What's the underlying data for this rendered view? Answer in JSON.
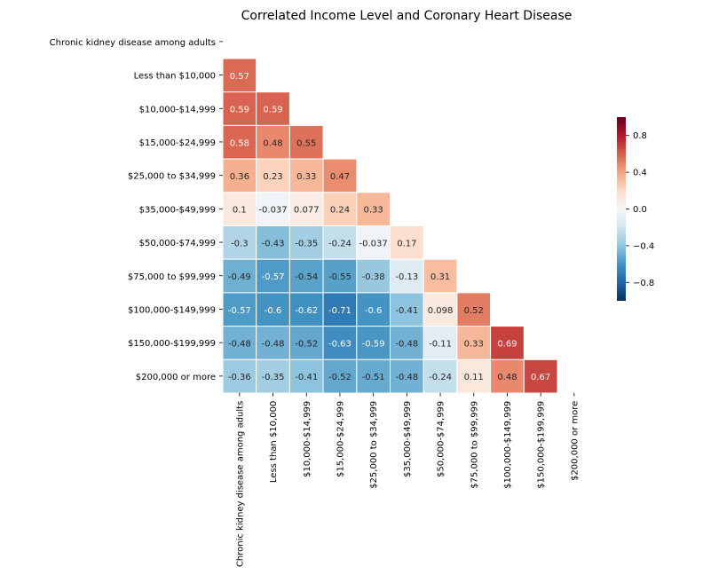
{
  "chart_data": {
    "type": "heatmap",
    "title": "Correlated Income Level and Coronary Heart Disease",
    "labels": [
      "Chronic kidney disease among adults",
      "Less than $10,000",
      "$10,000-$14,999",
      "$15,000-$24,999",
      "$25,000 to $34,999",
      "$35,000-$49,999",
      "$50,000-$74,999",
      "$75,000 to $99,999",
      "$100,000-$149,999",
      "$150,000-$199,999",
      "$200,000 or more"
    ],
    "lower_triangle": [
      [],
      [
        0.57
      ],
      [
        0.59,
        0.59
      ],
      [
        0.58,
        0.48,
        0.55
      ],
      [
        0.36,
        0.23,
        0.33,
        0.47
      ],
      [
        0.1,
        -0.037,
        0.077,
        0.24,
        0.33
      ],
      [
        -0.3,
        -0.43,
        -0.35,
        -0.24,
        -0.037,
        0.17
      ],
      [
        -0.49,
        -0.57,
        -0.54,
        -0.55,
        -0.38,
        -0.13,
        0.31
      ],
      [
        -0.57,
        -0.6,
        -0.62,
        -0.71,
        -0.6,
        -0.41,
        0.098,
        0.52
      ],
      [
        -0.48,
        -0.48,
        -0.52,
        -0.63,
        -0.59,
        -0.48,
        -0.11,
        0.33,
        0.69
      ],
      [
        -0.36,
        -0.35,
        -0.41,
        -0.52,
        -0.51,
        -0.48,
        -0.24,
        0.11,
        0.48,
        0.67
      ]
    ],
    "value_labels": [
      [],
      [
        "0.57"
      ],
      [
        "0.59",
        "0.59"
      ],
      [
        "0.58",
        "0.48",
        "0.55"
      ],
      [
        "0.36",
        "0.23",
        "0.33",
        "0.47"
      ],
      [
        "0.1",
        "-0.037",
        "0.077",
        "0.24",
        "0.33"
      ],
      [
        "-0.3",
        "-0.43",
        "-0.35",
        "-0.24",
        "-0.037",
        "0.17"
      ],
      [
        "-0.49",
        "-0.57",
        "-0.54",
        "-0.55",
        "-0.38",
        "-0.13",
        "0.31"
      ],
      [
        "-0.57",
        "-0.6",
        "-0.62",
        "-0.71",
        "-0.6",
        "-0.41",
        "0.098",
        "0.52"
      ],
      [
        "-0.48",
        "-0.48",
        "-0.52",
        "-0.63",
        "-0.59",
        "-0.48",
        "-0.11",
        "0.33",
        "0.69"
      ],
      [
        "-0.36",
        "-0.35",
        "-0.41",
        "-0.52",
        "-0.51",
        "-0.48",
        "-0.24",
        "0.11",
        "0.48",
        "0.67"
      ]
    ],
    "masked": "upper triangle including diagonal",
    "colormap": "RdBu_r",
    "vmin": -1,
    "vmax": 1,
    "colorbar": {
      "ticks": [
        -0.8,
        -0.4,
        0.0,
        0.4,
        0.8
      ],
      "tick_labels": [
        "−0.8",
        "−0.4",
        "0.0",
        "0.4",
        "0.8"
      ]
    },
    "colors": {
      "low": "#053061",
      "mid": "#f7f7f7",
      "high": "#67001f"
    },
    "grid": false
  }
}
